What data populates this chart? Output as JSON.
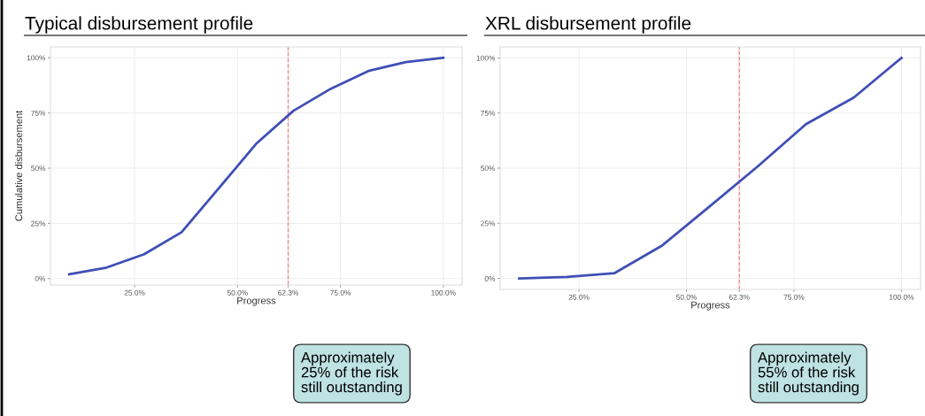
{
  "chart_data": [
    {
      "type": "line",
      "title": "Typical disbursement profile",
      "xlabel": "Progress",
      "ylabel": "Cumulative disbursement",
      "series": [
        {
          "color": "#3f4fb5",
          "x": [
            9.1,
            18.2,
            27.3,
            36.4,
            45.5,
            54.5,
            63.6,
            72.7,
            81.8,
            90.9,
            100
          ],
          "values": [
            2,
            5,
            11,
            21,
            41,
            61,
            76,
            86,
            94,
            98,
            100
          ]
        }
      ],
      "xlim": [
        4.55,
        104.55
      ],
      "ylim": [
        -2.9,
        104.9
      ],
      "xticks": [
        {
          "value": 25,
          "label": "25.0%"
        },
        {
          "value": 50,
          "label": "50.0%"
        },
        {
          "value": 62.3,
          "label": "62.3%"
        },
        {
          "value": 75,
          "label": "75.0%"
        },
        {
          "value": 100,
          "label": "100.0%"
        }
      ],
      "yticks": [
        {
          "value": 0,
          "label": "0%"
        },
        {
          "value": 25,
          "label": "25%"
        },
        {
          "value": 50,
          "label": "50%"
        },
        {
          "value": 75,
          "label": "75%"
        },
        {
          "value": 100,
          "label": "100%"
        }
      ],
      "ref_lines": [
        {
          "axis": "x",
          "value": 62.3,
          "color": "#f08080",
          "line_style": "dashed"
        }
      ],
      "grid": true,
      "marker": "none",
      "line_style": "solid",
      "annotations": [
        "Approximately\n25% of the risk\nstill outstanding"
      ]
    },
    {
      "type": "line",
      "title": "XRL disbursement profile",
      "xlabel": "Progress",
      "series": [
        {
          "color": "#3f4fb5",
          "x": [
            11.1,
            22.2,
            33.3,
            44.4,
            55.6,
            66.7,
            77.8,
            88.9,
            100
          ],
          "values": [
            0,
            0.7,
            2.4,
            15,
            33,
            51,
            70,
            82,
            100
          ]
        }
      ],
      "xlim": [
        6.67,
        104.44
      ],
      "ylim": [
        -5,
        105
      ],
      "xticks": [
        {
          "value": 25,
          "label": "25.0%"
        },
        {
          "value": 50,
          "label": "50.0%"
        },
        {
          "value": 62.3,
          "label": "62.3%"
        },
        {
          "value": 75,
          "label": "75.0%"
        },
        {
          "value": 100,
          "label": "100.0%"
        }
      ],
      "yticks": [
        {
          "value": 0,
          "label": "0%"
        },
        {
          "value": 25,
          "label": "25%"
        },
        {
          "value": 50,
          "label": "50%"
        },
        {
          "value": 75,
          "label": "75%"
        },
        {
          "value": 100,
          "label": "100%"
        }
      ],
      "ref_lines": [
        {
          "axis": "x",
          "value": 62.3,
          "color": "#f08080",
          "line_style": "dashed"
        }
      ],
      "grid": true,
      "marker": "none",
      "line_style": "solid",
      "annotations": [
        "Approximately\n55% of the risk\nstill outstanding"
      ]
    }
  ]
}
